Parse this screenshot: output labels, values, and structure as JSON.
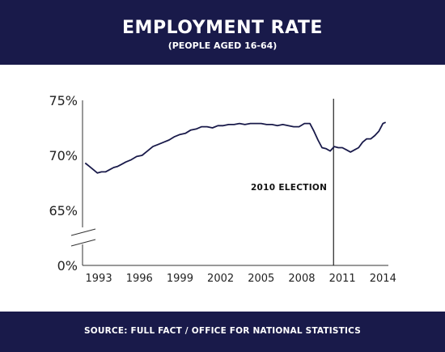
{
  "header": {
    "title": "EMPLOYMENT RATE",
    "subtitle": "(PEOPLE AGED 16-64)"
  },
  "footer": {
    "source": "SOURCE: FULL FACT / OFFICE FOR NATIONAL STATISTICS"
  },
  "colors": {
    "navy": "#191a4a",
    "line": "#191a4a",
    "text": "#222222"
  },
  "chart_data": {
    "type": "line",
    "title": "EMPLOYMENT RATE",
    "subtitle": "(PEOPLE AGED 16-64)",
    "xlabel": "",
    "ylabel": "",
    "y_axis_break": "between 0% and 65%",
    "y_ticks": [
      "75%",
      "70%",
      "65%",
      "0%"
    ],
    "x_ticks": [
      "1993",
      "1996",
      "1999",
      "2002",
      "2005",
      "2008",
      "2011",
      "2014"
    ],
    "xlim": [
      1991.8,
      2014.4
    ],
    "ylim_upper": [
      65,
      75
    ],
    "grid": false,
    "annotation": {
      "label": "2010 ELECTION",
      "x": 2010.35
    },
    "series": [
      {
        "x": [
          1992.0,
          1992.3,
          1992.6,
          1992.9,
          1993.2,
          1993.5,
          1993.8,
          1994.1,
          1994.4,
          1994.7,
          1995.0,
          1995.4,
          1995.8,
          1996.2,
          1996.6,
          1997.0,
          1997.4,
          1997.8,
          1998.2,
          1998.6,
          1999.0,
          1999.4,
          1999.8,
          2000.2,
          2000.6,
          2001.0,
          2001.4,
          2001.8,
          2002.2,
          2002.6,
          2003.0,
          2003.4,
          2003.8,
          2004.2,
          2004.6,
          2005.0,
          2005.4,
          2005.8,
          2006.2,
          2006.6,
          2007.0,
          2007.4,
          2007.8,
          2008.2,
          2008.6,
          2008.9,
          2009.2,
          2009.5,
          2009.8,
          2010.1,
          2010.4,
          2010.7,
          2011.0,
          2011.3,
          2011.6,
          2011.9,
          2012.2,
          2012.5,
          2012.8,
          2013.1,
          2013.4,
          2013.7,
          2014.0,
          2014.2
        ],
        "y": [
          69.3,
          69.0,
          68.7,
          68.4,
          68.5,
          68.5,
          68.7,
          68.9,
          69.0,
          69.2,
          69.4,
          69.6,
          69.9,
          70.0,
          70.4,
          70.8,
          71.0,
          71.2,
          71.4,
          71.7,
          71.9,
          72.0,
          72.3,
          72.4,
          72.6,
          72.6,
          72.5,
          72.7,
          72.7,
          72.8,
          72.8,
          72.9,
          72.8,
          72.9,
          72.9,
          72.9,
          72.8,
          72.8,
          72.7,
          72.8,
          72.7,
          72.6,
          72.6,
          72.9,
          72.9,
          72.2,
          71.4,
          70.7,
          70.6,
          70.4,
          70.8,
          70.7,
          70.7,
          70.5,
          70.3,
          70.5,
          70.7,
          71.2,
          71.5,
          71.5,
          71.8,
          72.2,
          72.9,
          73.0
        ]
      }
    ]
  }
}
